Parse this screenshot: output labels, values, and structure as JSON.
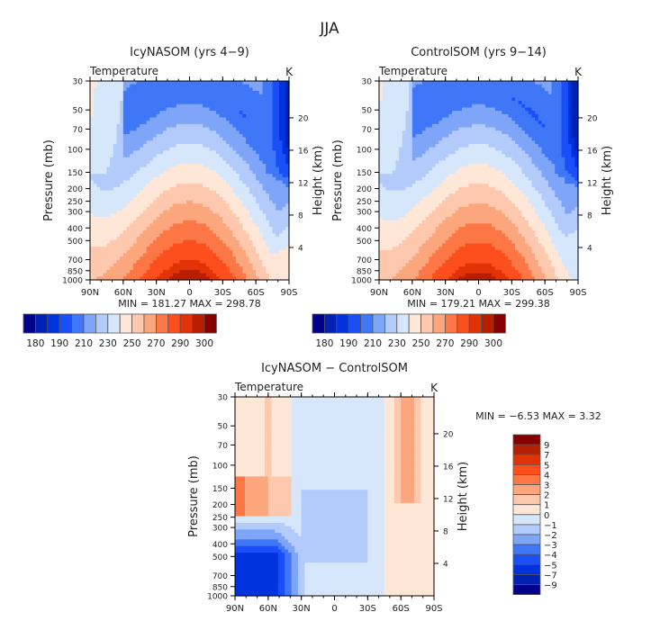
{
  "figure_title": "JJA",
  "palette": [
    "#00008b",
    "#0022b4",
    "#0033dd",
    "#1a4ff7",
    "#3f77f7",
    "#7ea5f8",
    "#b3cbfa",
    "#d6e7fc",
    "#ffe7d7",
    "#fdc8ad",
    "#fca67e",
    "#fb7745",
    "#fc4f1d",
    "#e23207",
    "#b71e00",
    "#870000"
  ],
  "chart_data": [
    {
      "type": "heatmap",
      "title": "IcyNASOM (yrs 4−9)",
      "left_label": "Temperature",
      "units": "K",
      "ylabel": "Pressure (mb)",
      "ylabel_right": "Height (km)",
      "x_ticks": [
        "90N",
        "60N",
        "30N",
        "0",
        "30S",
        "60S",
        "90S"
      ],
      "x_values": [
        90,
        60,
        30,
        0,
        -30,
        -60,
        -90
      ],
      "y_ticks": [
        30,
        50,
        70,
        100,
        150,
        200,
        250,
        300,
        400,
        500,
        700,
        850,
        1000
      ],
      "y_ticks_right": [
        4,
        8,
        12,
        16,
        20
      ],
      "ylim": [
        1000,
        30
      ],
      "stats_text": "MIN = 181.27   MAX = 298.78",
      "min": 181.27,
      "max": 298.78,
      "levels": [
        180,
        185,
        190,
        200,
        210,
        220,
        230,
        240,
        250,
        260,
        270,
        280,
        290,
        295,
        300
      ],
      "colorbar_labels": [
        "180",
        "190",
        "210",
        "230",
        "250",
        "270",
        "290",
        "300"
      ],
      "colorbar_label_positions": [
        0,
        2,
        4,
        6,
        8,
        10,
        12,
        14
      ]
    },
    {
      "type": "heatmap",
      "title": "ControlSOM (yrs 9−14)",
      "left_label": "Temperature",
      "units": "K",
      "ylabel": "Pressure (mb)",
      "ylabel_right": "Height (km)",
      "x_ticks": [
        "90N",
        "60N",
        "30N",
        "0",
        "30S",
        "60S",
        "90S"
      ],
      "x_values": [
        90,
        60,
        30,
        0,
        -30,
        -60,
        -90
      ],
      "y_ticks": [
        30,
        50,
        70,
        100,
        150,
        200,
        250,
        300,
        400,
        500,
        700,
        850,
        1000
      ],
      "y_ticks_right": [
        4,
        8,
        12,
        16,
        20
      ],
      "ylim": [
        1000,
        30
      ],
      "stats_text": "MIN = 179.21   MAX = 299.38",
      "min": 179.21,
      "max": 299.38,
      "levels": [
        180,
        185,
        190,
        200,
        210,
        220,
        230,
        240,
        250,
        260,
        270,
        280,
        290,
        295,
        300
      ],
      "colorbar_labels": [
        "180",
        "190",
        "210",
        "230",
        "250",
        "270",
        "290",
        "300"
      ],
      "colorbar_label_positions": [
        0,
        2,
        4,
        6,
        8,
        10,
        12,
        14
      ]
    },
    {
      "type": "heatmap",
      "title": "IcyNASOM − ControlSOM",
      "left_label": "Temperature",
      "units": "K",
      "ylabel": "Pressure (mb)",
      "ylabel_right": "Height (km)",
      "x_ticks": [
        "90N",
        "60N",
        "30N",
        "0",
        "30S",
        "60S",
        "90S"
      ],
      "x_values": [
        90,
        60,
        30,
        0,
        -30,
        -60,
        -90
      ],
      "y_ticks": [
        30,
        50,
        70,
        100,
        150,
        200,
        250,
        300,
        400,
        500,
        700,
        850,
        1000
      ],
      "y_ticks_right": [
        4,
        8,
        12,
        16,
        20
      ],
      "ylim": [
        1000,
        30
      ],
      "stats_text": "MIN =   −6.53   MAX =    3.32",
      "min": -6.53,
      "max": 3.32,
      "levels": [
        -9,
        -7,
        -5,
        -4,
        -3,
        -2,
        -1,
        0,
        1,
        2,
        3,
        4,
        5,
        7,
        9
      ],
      "colorbar_labels": [
        "9",
        "7",
        "5",
        "4",
        "3",
        "2",
        "1",
        "0",
        "−1",
        "−2",
        "−3",
        "−4",
        "−5",
        "−7",
        "−9"
      ]
    }
  ]
}
